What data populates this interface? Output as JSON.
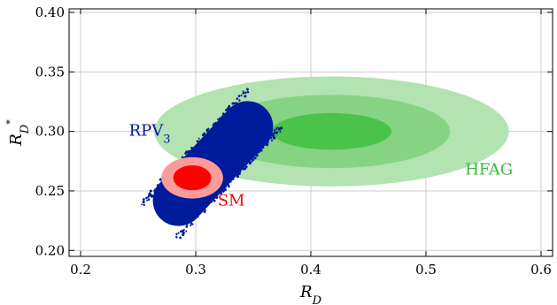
{
  "chart_data": {
    "type": "scatter",
    "title": "",
    "xlabel": {
      "main": "R",
      "sub": "D",
      "sup": ""
    },
    "ylabel": {
      "main": "R",
      "sub": "D",
      "sup": "*"
    },
    "xlim": [
      0.19,
      0.61
    ],
    "ylim": [
      0.195,
      0.403
    ],
    "x_ticks": [
      {
        "value": 0.2,
        "label": "0.2"
      },
      {
        "value": 0.3,
        "label": "0.3"
      },
      {
        "value": 0.4,
        "label": "0.4"
      },
      {
        "value": 0.5,
        "label": "0.5"
      },
      {
        "value": 0.6,
        "label": "0.6"
      }
    ],
    "y_ticks": [
      {
        "value": 0.2,
        "label": "0.20"
      },
      {
        "value": 0.25,
        "label": "0.25"
      },
      {
        "value": 0.3,
        "label": "0.30"
      },
      {
        "value": 0.35,
        "label": "0.35"
      },
      {
        "value": 0.4,
        "label": "0.40"
      }
    ],
    "grid": true,
    "regions": [
      {
        "name": "HFAG",
        "center": [
          0.418,
          0.3
        ],
        "color_layers": [
          "#b2e3b0",
          "#86d383",
          "#4bc24a"
        ],
        "layers": [
          {
            "rx": 0.154,
            "ry": 0.0462
          },
          {
            "rx": 0.103,
            "ry": 0.0308
          },
          {
            "rx": 0.052,
            "ry": 0.0154
          }
        ]
      },
      {
        "name": "SM",
        "center": [
          0.297,
          0.261
        ],
        "color_layers": [
          "#fa9c9c",
          "#ff0000"
        ],
        "layers": [
          {
            "rx": 0.0268,
            "ry": 0.0174
          },
          {
            "rx": 0.0165,
            "ry": 0.0105
          }
        ]
      }
    ],
    "scatter_band": {
      "name": "RPV3",
      "color": "#001a9c",
      "from": [
        0.285,
        0.242
      ],
      "to": [
        0.345,
        0.304
      ],
      "half_width": [
        0.026,
        0.0144
      ]
    },
    "annotations": [
      {
        "text": "HFAG",
        "sub": "",
        "x": 0.534,
        "y": 0.2638,
        "color": "#3bb83a"
      },
      {
        "text": "SM",
        "sub": "",
        "x": 0.319,
        "y": 0.2376,
        "color": "#ff0000"
      },
      {
        "text": "RPV",
        "sub": "3",
        "x": 0.242,
        "y": 0.2964,
        "color": "#001a9c"
      }
    ]
  }
}
